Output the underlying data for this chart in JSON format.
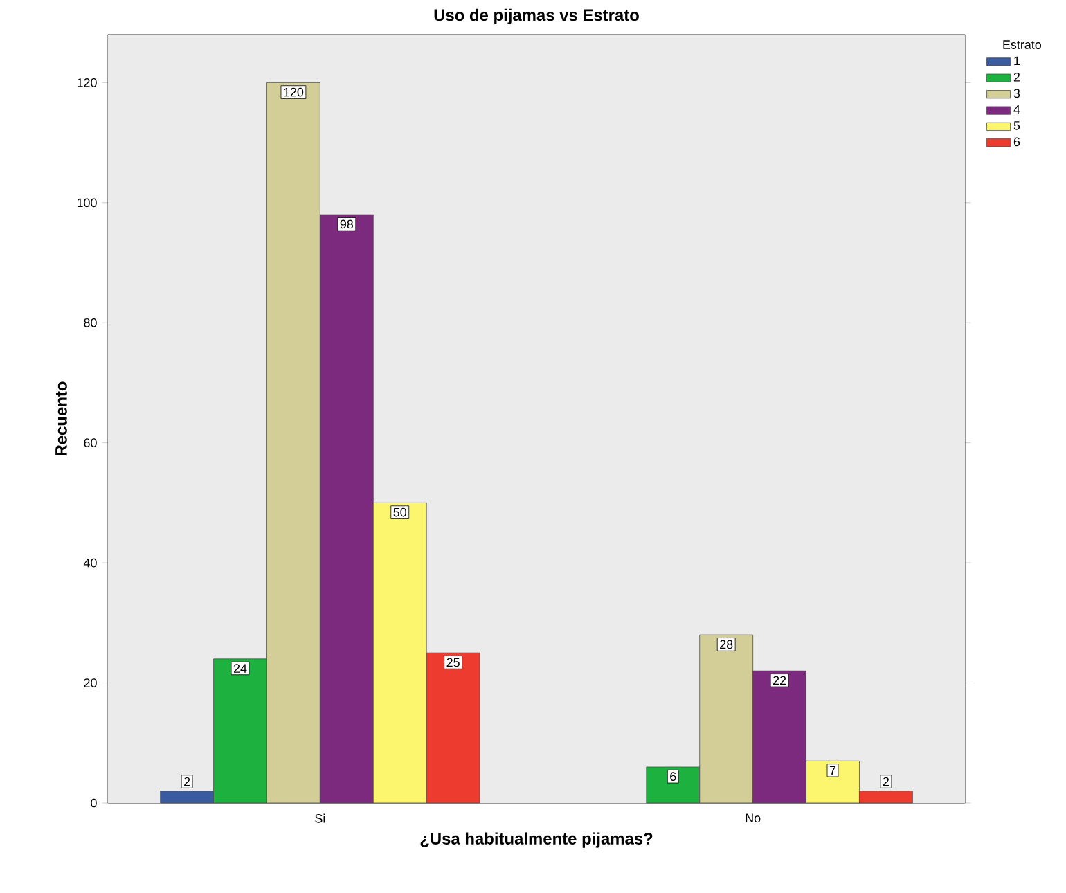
{
  "chart_data": {
    "type": "bar",
    "title": "Uso de pijamas vs Estrato",
    "xlabel": "¿Usa habitualmente pijamas?",
    "ylabel": "Recuento",
    "legend_title": "Estrato",
    "categories": [
      "Si",
      "No"
    ],
    "series": [
      {
        "name": "1",
        "color": "#3a5ba0",
        "values": [
          2,
          null
        ]
      },
      {
        "name": "2",
        "color": "#1db13f",
        "values": [
          24,
          6
        ]
      },
      {
        "name": "3",
        "color": "#d3ce97",
        "values": [
          120,
          28
        ]
      },
      {
        "name": "4",
        "color": "#7b2a7d",
        "values": [
          98,
          22
        ]
      },
      {
        "name": "5",
        "color": "#fbf66e",
        "values": [
          50,
          7
        ]
      },
      {
        "name": "6",
        "color": "#ee3b2f",
        "values": [
          25,
          2
        ]
      }
    ],
    "ylim": [
      0,
      128
    ],
    "yticks": [
      0,
      20,
      40,
      60,
      80,
      100,
      120
    ],
    "grid": false,
    "legend": "top right",
    "data_labels": true
  }
}
